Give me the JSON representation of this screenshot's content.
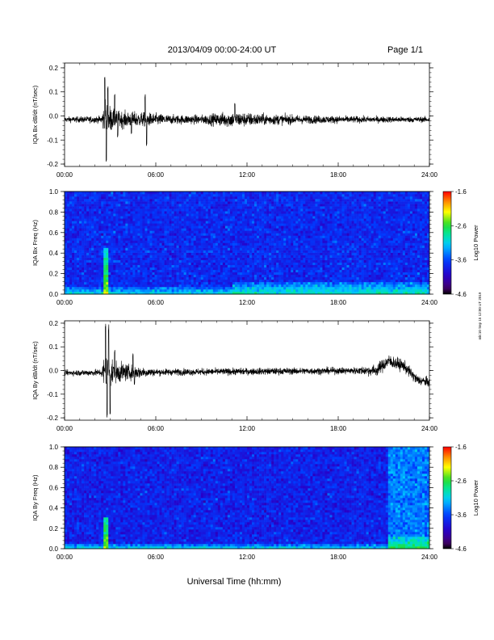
{
  "header": {
    "date_range": "2013/04/09  00:00-24:00 UT",
    "page": "Page 1/1"
  },
  "footer": {
    "xlabel": "Universal Time (hh:mm)",
    "side_stamp": "mk:10 Sep 15 12:00 UT 2019"
  },
  "chart_data": [
    {
      "type": "line",
      "ylabel": "IQA Bx dB/dt (nT/sec)",
      "x_ticks": [
        "00:00",
        "06:00",
        "12:00",
        "18:00",
        "24:00"
      ],
      "xlim": [
        0,
        24
      ],
      "ylim": [
        -0.21,
        0.22
      ],
      "y_ticks": [
        0.2,
        0.1,
        0.0,
        -0.1,
        -0.2
      ],
      "y_tick_labels": [
        "0.2",
        "0.1",
        "0.0",
        "-0.1",
        "-0.2"
      ],
      "baseline": -0.015,
      "noise_profile": [
        {
          "x": 0,
          "amp": 0.012
        },
        {
          "x": 2.4,
          "amp": 0.015
        },
        {
          "x": 2.7,
          "amp": 0.09
        },
        {
          "x": 3.2,
          "amp": 0.04
        },
        {
          "x": 4.0,
          "amp": 0.035
        },
        {
          "x": 5.5,
          "amp": 0.03
        },
        {
          "x": 7.0,
          "amp": 0.02
        },
        {
          "x": 9.0,
          "amp": 0.02
        },
        {
          "x": 11.0,
          "amp": 0.035
        },
        {
          "x": 13.0,
          "amp": 0.025
        },
        {
          "x": 16.0,
          "amp": 0.018
        },
        {
          "x": 20.0,
          "amp": 0.014
        },
        {
          "x": 24.0,
          "amp": 0.012
        }
      ],
      "spikes": [
        {
          "x": 2.65,
          "y": 0.17
        },
        {
          "x": 2.75,
          "y": -0.2
        },
        {
          "x": 2.85,
          "y": 0.13
        },
        {
          "x": 3.3,
          "y": 0.1
        },
        {
          "x": 3.5,
          "y": -0.09
        },
        {
          "x": 5.3,
          "y": 0.09
        },
        {
          "x": 5.4,
          "y": -0.13
        },
        {
          "x": 4.4,
          "y": -0.08
        },
        {
          "x": 11.2,
          "y": 0.055
        }
      ]
    },
    {
      "type": "heatmap",
      "ylabel": "IQA Bx Freq (Hz)",
      "x_ticks": [
        "00:00",
        "06:00",
        "12:00",
        "18:00",
        "24:00"
      ],
      "xlim": [
        0,
        24
      ],
      "ylim": [
        0,
        1.0
      ],
      "y_ticks": [
        1.0,
        0.8,
        0.6,
        0.4,
        0.2,
        0.0
      ],
      "y_tick_labels": [
        "1.0",
        "0.8",
        "0.6",
        "0.4",
        "0.2",
        "0.0"
      ],
      "colorbar": {
        "label": "Log10 Power",
        "min": -4.6,
        "max": -1.6,
        "ticks": [
          "-1.6",
          "-2.6",
          "-3.6",
          "-4.6"
        ]
      },
      "background_level": -3.75,
      "features": [
        {
          "kind": "column",
          "x": 2.7,
          "f_max": 0.45,
          "level": -2.4
        },
        {
          "kind": "low_band",
          "x_start": 0,
          "x_end": 24,
          "f_max": 0.08,
          "level": -3.0
        },
        {
          "kind": "low_band",
          "x_start": 11,
          "x_end": 24,
          "f_max": 0.12,
          "level": -2.9
        }
      ]
    },
    {
      "type": "line",
      "ylabel": "IQA By dB/dt (nT/sec)",
      "x_ticks": [
        "00:00",
        "06:00",
        "12:00",
        "18:00",
        "24:00"
      ],
      "xlim": [
        0,
        24
      ],
      "ylim": [
        -0.21,
        0.21
      ],
      "y_ticks": [
        0.2,
        0.1,
        0.0,
        -0.1,
        -0.2
      ],
      "y_tick_labels": [
        "0.2",
        "0.1",
        "0.0",
        "-0.1",
        "-0.2"
      ],
      "baseline": -0.01,
      "drift": [
        {
          "x": 0,
          "y": -0.01
        },
        {
          "x": 20.5,
          "y": 0.0
        },
        {
          "x": 21.3,
          "y": 0.04
        },
        {
          "x": 22.3,
          "y": 0.02
        },
        {
          "x": 23.2,
          "y": -0.04
        },
        {
          "x": 24,
          "y": -0.05
        }
      ],
      "noise_profile": [
        {
          "x": 0,
          "amp": 0.012
        },
        {
          "x": 2.4,
          "amp": 0.015
        },
        {
          "x": 2.7,
          "amp": 0.1
        },
        {
          "x": 3.3,
          "amp": 0.05
        },
        {
          "x": 4.5,
          "amp": 0.03
        },
        {
          "x": 6.0,
          "amp": 0.015
        },
        {
          "x": 10.0,
          "amp": 0.015
        },
        {
          "x": 14.0,
          "amp": 0.015
        },
        {
          "x": 19.0,
          "amp": 0.015
        },
        {
          "x": 21.0,
          "amp": 0.03
        },
        {
          "x": 24.0,
          "amp": 0.02
        }
      ],
      "spikes": [
        {
          "x": 2.7,
          "y": 0.2
        },
        {
          "x": 2.8,
          "y": -0.2
        },
        {
          "x": 2.9,
          "y": 0.2
        },
        {
          "x": 3.0,
          "y": -0.19
        },
        {
          "x": 3.3,
          "y": 0.09
        },
        {
          "x": 4.5,
          "y": 0.07
        },
        {
          "x": 4.6,
          "y": -0.06
        }
      ]
    },
    {
      "type": "heatmap",
      "ylabel": "IQA By Freq (Hz)",
      "x_ticks": [
        "00:00",
        "06:00",
        "12:00",
        "18:00",
        "24:00"
      ],
      "xlim": [
        0,
        24
      ],
      "ylim": [
        0,
        1.0
      ],
      "y_ticks": [
        1.0,
        0.8,
        0.6,
        0.4,
        0.2,
        0.0
      ],
      "y_tick_labels": [
        "1.0",
        "0.8",
        "0.6",
        "0.4",
        "0.2",
        "0.0"
      ],
      "colorbar": {
        "label": "Log10 Power",
        "min": -4.6,
        "max": -1.6,
        "ticks": [
          "-1.6",
          "-2.6",
          "-3.6",
          "-4.6"
        ]
      },
      "background_level": -3.8,
      "features": [
        {
          "kind": "column",
          "x": 2.7,
          "f_max": 0.3,
          "level": -2.4
        },
        {
          "kind": "low_band",
          "x_start": 0,
          "x_end": 24,
          "f_max": 0.05,
          "level": -3.0
        },
        {
          "kind": "block",
          "x_start": 21.3,
          "x_end": 24,
          "f_min": 0,
          "f_max": 1.0,
          "level": -3.4
        },
        {
          "kind": "low_band",
          "x_start": 21.3,
          "x_end": 24,
          "f_max": 0.12,
          "level": -2.6
        }
      ]
    }
  ]
}
